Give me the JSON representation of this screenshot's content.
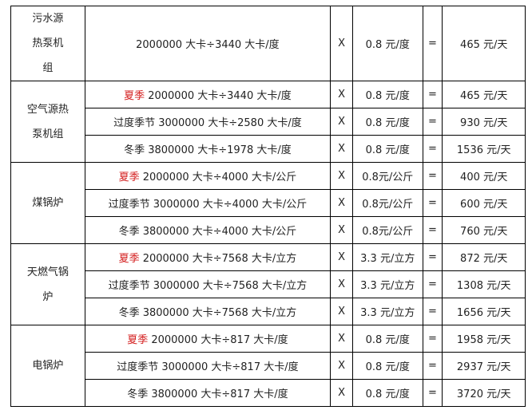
{
  "groups": [
    {
      "name": "污水源热泵机组",
      "name_lines": [
        "污水源",
        "热泵机",
        "组"
      ],
      "rows": [
        {
          "prefix": "",
          "formula": "2000000 大卡÷3440 大卡/度",
          "op": "X",
          "price": "0.8 元/度",
          "eq": "=",
          "result": "465 元/天"
        }
      ]
    },
    {
      "name": "空气源热泵机组",
      "name_lines": [
        "空气源热",
        "泵机组"
      ],
      "rows": [
        {
          "prefix": "夏季",
          "prefix_red": true,
          "formula": " 2000000 大卡÷3440 大卡/度",
          "op": "X",
          "price": "0.8 元/度",
          "eq": "=",
          "result": "465 元/天"
        },
        {
          "prefix": "过度季节",
          "formula": " 3000000 大卡÷2580 大卡/度",
          "op": "X",
          "price": "0.8 元/度",
          "eq": "=",
          "result": "930 元/天"
        },
        {
          "prefix": "冬季",
          "formula": " 3800000 大卡÷1978 大卡/度",
          "op": "X",
          "price": "0.8 元/度",
          "eq": "=",
          "result": "1536 元/天"
        }
      ]
    },
    {
      "name": "煤锅炉",
      "name_lines": [
        "煤锅炉"
      ],
      "rows": [
        {
          "prefix": "夏季",
          "prefix_red": true,
          "formula": " 2000000 大卡÷4000 大卡/公斤",
          "op": "X",
          "price": "0.8元/公斤",
          "eq": "=",
          "result": "400 元/天"
        },
        {
          "prefix": "过度季节",
          "formula": " 3000000 大卡÷4000 大卡/公斤",
          "op": "X",
          "price": "0.8元/公斤",
          "eq": "=",
          "result": "600 元/天"
        },
        {
          "prefix": "冬季",
          "formula": " 3800000 大卡÷4000 大卡/公斤",
          "op": "X",
          "price": "0.8元/公斤",
          "eq": "=",
          "result": "760 元/天"
        }
      ]
    },
    {
      "name": "天燃气锅炉",
      "name_lines": [
        "天燃气锅",
        "炉"
      ],
      "rows": [
        {
          "prefix": "夏季",
          "prefix_red": true,
          "formula": " 2000000 大卡÷7568 大卡/立方",
          "op": "X",
          "price": "3.3 元/立方",
          "eq": "=",
          "result": "872 元/天"
        },
        {
          "prefix": "过度季节",
          "formula": " 3000000 大卡÷7568 大卡/立方",
          "op": "X",
          "price": "3.3 元/立方",
          "eq": "=",
          "result": "1308 元/天"
        },
        {
          "prefix": "冬季",
          "formula": " 3800000 大卡÷7568 大卡/立方",
          "op": "X",
          "price": "3.3 元/立方",
          "eq": "=",
          "result": "1656 元/天"
        }
      ]
    },
    {
      "name": "电锅炉",
      "name_lines": [
        "电锅炉"
      ],
      "rows": [
        {
          "prefix": "夏季",
          "prefix_red": true,
          "formula": " 2000000 大卡÷817 大卡/度",
          "op": "X",
          "price": "0.8 元/度",
          "eq": "=",
          "result": "1958 元/天"
        },
        {
          "prefix": "过度季节",
          "formula": " 3000000 大卡÷817 大卡/度",
          "op": "X",
          "price": "0.8 元/度",
          "eq": "=",
          "result": "2937 元/天"
        },
        {
          "prefix": "冬季",
          "formula": " 3800000 大卡÷817 大卡/度",
          "op": "X",
          "price": "0.8 元/度",
          "eq": "=",
          "result": "3720 元/天"
        }
      ]
    }
  ],
  "colors": {
    "summer_label": "#d42020"
  }
}
